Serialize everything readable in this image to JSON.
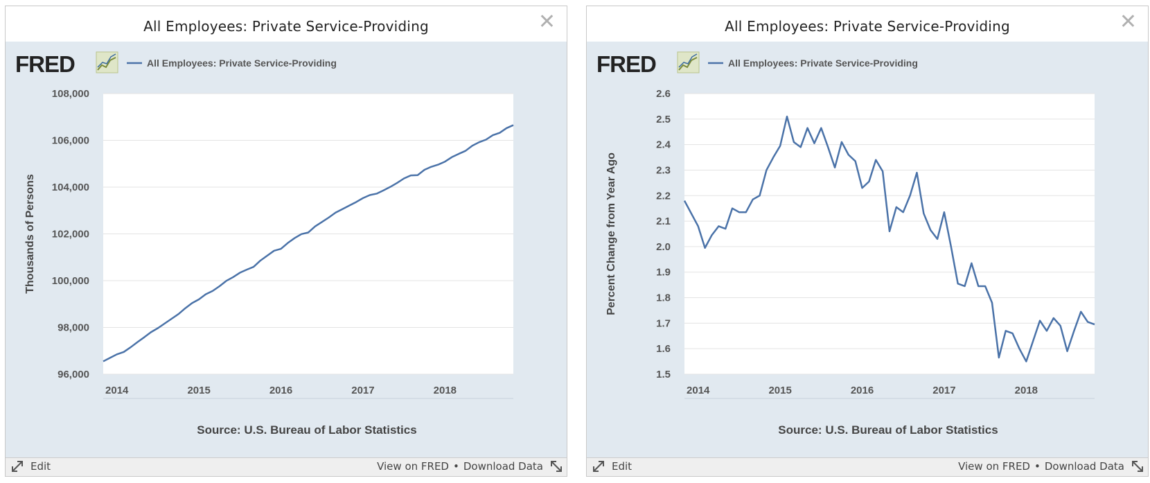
{
  "colors": {
    "line": "#4a72a8",
    "panel_bg": "#e1e9f0",
    "plot_bg": "#ffffff",
    "grid": "#e3e3e3"
  },
  "footer": {
    "edit_label": "Edit",
    "view_label": "View on FRED",
    "separator": "•",
    "download_label": "Download Data"
  },
  "panels": [
    {
      "title": "All Employees: Private Service-Providing",
      "logo_text": "FRED",
      "legend_label": "All Employees: Private Service-Providing",
      "source": "Source: U.S. Bureau of Labor Statistics"
    },
    {
      "title": "All Employees: Private Service-Providing",
      "logo_text": "FRED",
      "legend_label": "All Employees: Private Service-Providing",
      "source": "Source: U.S. Bureau of Labor Statistics"
    }
  ],
  "chart_data": [
    {
      "type": "line",
      "ylabel": "Thousands of Persons",
      "ylim": [
        96000,
        108000
      ],
      "yticks": [
        96000,
        98000,
        100000,
        102000,
        104000,
        106000,
        108000
      ],
      "ytick_labels": [
        "96,000",
        "98,000",
        "100,000",
        "102,000",
        "104,000",
        "106,000",
        "108,000"
      ],
      "xlim": [
        "2013-11",
        "2018-11"
      ],
      "xticks": [
        "2014",
        "2015",
        "2016",
        "2017",
        "2018"
      ],
      "grid": true,
      "legend_position": "top-left",
      "series": [
        {
          "name": "All Employees: Private Service-Providing",
          "x": [
            "2013-11",
            "2013-12",
            "2014-01",
            "2014-02",
            "2014-03",
            "2014-04",
            "2014-05",
            "2014-06",
            "2014-07",
            "2014-08",
            "2014-09",
            "2014-10",
            "2014-11",
            "2014-12",
            "2015-01",
            "2015-02",
            "2015-03",
            "2015-04",
            "2015-05",
            "2015-06",
            "2015-07",
            "2015-08",
            "2015-09",
            "2015-10",
            "2015-11",
            "2015-12",
            "2016-01",
            "2016-02",
            "2016-03",
            "2016-04",
            "2016-05",
            "2016-06",
            "2016-07",
            "2016-08",
            "2016-09",
            "2016-10",
            "2016-11",
            "2016-12",
            "2017-01",
            "2017-02",
            "2017-03",
            "2017-04",
            "2017-05",
            "2017-06",
            "2017-07",
            "2017-08",
            "2017-09",
            "2017-10",
            "2017-11",
            "2017-12",
            "2018-01",
            "2018-02",
            "2018-03",
            "2018-04",
            "2018-05",
            "2018-06",
            "2018-07",
            "2018-08",
            "2018-09",
            "2018-10",
            "2018-11"
          ],
          "values": [
            96550,
            96700,
            96850,
            96950,
            97150,
            97370,
            97580,
            97800,
            97970,
            98170,
            98370,
            98570,
            98820,
            99040,
            99200,
            99420,
            99560,
            99760,
            99990,
            100150,
            100340,
            100470,
            100590,
            100860,
            101070,
            101280,
            101360,
            101610,
            101820,
            101990,
            102060,
            102320,
            102510,
            102700,
            102910,
            103060,
            103210,
            103360,
            103530,
            103660,
            103720,
            103860,
            104010,
            104180,
            104370,
            104500,
            104510,
            104740,
            104870,
            104960,
            105090,
            105280,
            105420,
            105550,
            105770,
            105920,
            106030,
            106220,
            106320,
            106520,
            106650
          ]
        }
      ]
    },
    {
      "type": "line",
      "ylabel": "Percent Change from Year Ago",
      "ylim": [
        1.5,
        2.6
      ],
      "yticks": [
        1.5,
        1.6,
        1.7,
        1.8,
        1.9,
        2.0,
        2.1,
        2.2,
        2.3,
        2.4,
        2.5,
        2.6
      ],
      "ytick_labels": [
        "1.5",
        "1.6",
        "1.7",
        "1.8",
        "1.9",
        "2.0",
        "2.1",
        "2.2",
        "2.3",
        "2.4",
        "2.5",
        "2.6"
      ],
      "xlim": [
        "2013-11",
        "2018-11"
      ],
      "xticks": [
        "2014",
        "2015",
        "2016",
        "2017",
        "2018"
      ],
      "grid": true,
      "legend_position": "top-left",
      "series": [
        {
          "name": "All Employees: Private Service-Providing",
          "x": [
            "2013-11",
            "2013-12",
            "2014-01",
            "2014-02",
            "2014-03",
            "2014-04",
            "2014-05",
            "2014-06",
            "2014-07",
            "2014-08",
            "2014-09",
            "2014-10",
            "2014-11",
            "2014-12",
            "2015-01",
            "2015-02",
            "2015-03",
            "2015-04",
            "2015-05",
            "2015-06",
            "2015-07",
            "2015-08",
            "2015-09",
            "2015-10",
            "2015-11",
            "2015-12",
            "2016-01",
            "2016-02",
            "2016-03",
            "2016-04",
            "2016-05",
            "2016-06",
            "2016-07",
            "2016-08",
            "2016-09",
            "2016-10",
            "2016-11",
            "2016-12",
            "2017-01",
            "2017-02",
            "2017-03",
            "2017-04",
            "2017-05",
            "2017-06",
            "2017-07",
            "2017-08",
            "2017-09",
            "2017-10",
            "2017-11",
            "2017-12",
            "2018-01",
            "2018-02",
            "2018-03",
            "2018-04",
            "2018-05",
            "2018-06",
            "2018-07",
            "2018-08",
            "2018-09",
            "2018-10",
            "2018-11"
          ],
          "values": [
            2.18,
            2.13,
            2.08,
            1.995,
            2.045,
            2.08,
            2.07,
            2.15,
            2.135,
            2.135,
            2.185,
            2.2,
            2.3,
            2.35,
            2.395,
            2.51,
            2.41,
            2.39,
            2.465,
            2.405,
            2.465,
            2.39,
            2.31,
            2.41,
            2.36,
            2.335,
            2.23,
            2.255,
            2.34,
            2.295,
            2.06,
            2.155,
            2.135,
            2.2,
            2.29,
            2.13,
            2.065,
            2.03,
            2.135,
            2.0,
            1.855,
            1.845,
            1.935,
            1.845,
            1.845,
            1.78,
            1.565,
            1.67,
            1.66,
            1.6,
            1.55,
            1.63,
            1.71,
            1.67,
            1.72,
            1.69,
            1.59,
            1.67,
            1.745,
            1.705,
            1.695
          ]
        }
      ]
    }
  ]
}
